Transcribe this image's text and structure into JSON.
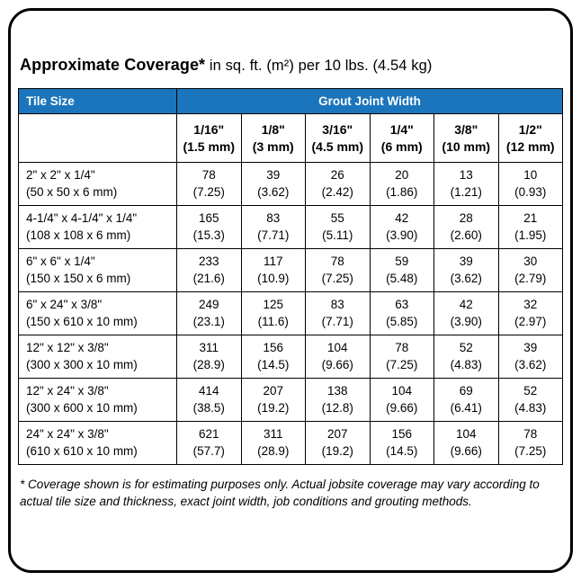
{
  "header": {
    "title_bold": "Approximate Coverage*",
    "title_rest": " in sq. ft. (m²) per 10 lbs. (4.54 kg)"
  },
  "colors": {
    "header_blue": "#1b75bc"
  },
  "chart_data": {
    "type": "table",
    "title": "Approximate Coverage* in sq. ft. (m²) per 10 lbs. (4.54 kg)",
    "row_header": "Tile Size",
    "column_group": "Grout Joint Width",
    "columns": [
      {
        "inch": "1/16\"",
        "metric": "(1.5 mm)"
      },
      {
        "inch": "1/8\"",
        "metric": "(3 mm)"
      },
      {
        "inch": "3/16\"",
        "metric": "(4.5 mm)"
      },
      {
        "inch": "1/4\"",
        "metric": "(6 mm)"
      },
      {
        "inch": "3/8\"",
        "metric": "(10 mm)"
      },
      {
        "inch": "1/2\"",
        "metric": "(12 mm)"
      }
    ],
    "rows": [
      {
        "size_in": "2\" x 2\" x 1/4\"",
        "size_mm": "(50 x 50 x 6 mm)",
        "coverage": [
          [
            "78",
            "(7.25)"
          ],
          [
            "39",
            "(3.62)"
          ],
          [
            "26",
            "(2.42)"
          ],
          [
            "20",
            "(1.86)"
          ],
          [
            "13",
            "(1.21)"
          ],
          [
            "10",
            "(0.93)"
          ]
        ]
      },
      {
        "size_in": "4-1/4\" x 4-1/4\" x 1/4\"",
        "size_mm": "(108 x 108 x 6 mm)",
        "coverage": [
          [
            "165",
            "(15.3)"
          ],
          [
            "83",
            "(7.71)"
          ],
          [
            "55",
            "(5.11)"
          ],
          [
            "42",
            "(3.90)"
          ],
          [
            "28",
            "(2.60)"
          ],
          [
            "21",
            "(1.95)"
          ]
        ]
      },
      {
        "size_in": "6\" x 6\" x 1/4\"",
        "size_mm": "(150 x 150 x 6 mm)",
        "coverage": [
          [
            "233",
            "(21.6)"
          ],
          [
            "117",
            "(10.9)"
          ],
          [
            "78",
            "(7.25)"
          ],
          [
            "59",
            "(5.48)"
          ],
          [
            "39",
            "(3.62)"
          ],
          [
            "30",
            "(2.79)"
          ]
        ]
      },
      {
        "size_in": "6\" x 24\" x 3/8\"",
        "size_mm": "(150 x 610 x 10 mm)",
        "coverage": [
          [
            "249",
            "(23.1)"
          ],
          [
            "125",
            "(11.6)"
          ],
          [
            "83",
            "(7.71)"
          ],
          [
            "63",
            "(5.85)"
          ],
          [
            "42",
            "(3.90)"
          ],
          [
            "32",
            "(2.97)"
          ]
        ]
      },
      {
        "size_in": "12\" x 12\" x 3/8\"",
        "size_mm": "(300 x 300 x 10 mm)",
        "coverage": [
          [
            "311",
            "(28.9)"
          ],
          [
            "156",
            "(14.5)"
          ],
          [
            "104",
            "(9.66)"
          ],
          [
            "78",
            "(7.25)"
          ],
          [
            "52",
            "(4.83)"
          ],
          [
            "39",
            "(3.62)"
          ]
        ]
      },
      {
        "size_in": "12\" x 24\" x 3/8\"",
        "size_mm": "(300 x 600 x 10 mm)",
        "coverage": [
          [
            "414",
            "(38.5)"
          ],
          [
            "207",
            "(19.2)"
          ],
          [
            "138",
            "(12.8)"
          ],
          [
            "104",
            "(9.66)"
          ],
          [
            "69",
            "(6.41)"
          ],
          [
            "52",
            "(4.83)"
          ]
        ]
      },
      {
        "size_in": "24\" x 24\" x 3/8\"",
        "size_mm": "(610 x 610 x 10 mm)",
        "coverage": [
          [
            "621",
            "(57.7)"
          ],
          [
            "311",
            "(28.9)"
          ],
          [
            "207",
            "(19.2)"
          ],
          [
            "156",
            "(14.5)"
          ],
          [
            "104",
            "(9.66)"
          ],
          [
            "78",
            "(7.25)"
          ]
        ]
      }
    ]
  },
  "footnote": "* Coverage shown is for estimating purposes only. Actual jobsite coverage may vary according to actual tile size and thickness, exact joint width, job conditions and grouting methods."
}
